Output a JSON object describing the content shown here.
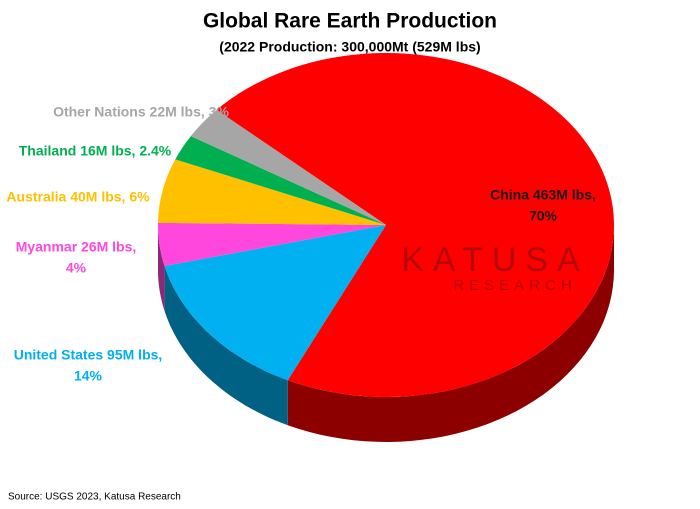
{
  "chart_data": {
    "type": "pie",
    "title": "Global Rare Earth Production",
    "subtitle": "(2022 Production: 300,000Mt (529M lbs)",
    "categories": [
      "China",
      "United States",
      "Myanmar",
      "Australia",
      "Thailand",
      "Other Nations"
    ],
    "values": [
      70,
      14,
      4,
      6,
      2.4,
      3
    ],
    "value_labels": [
      [
        "China 463M lbs,",
        "70%"
      ],
      [
        "United States 95M lbs,",
        "14%"
      ],
      [
        "Myanmar 26M lbs,",
        "4%"
      ],
      [
        "Australia 40M lbs, 6%"
      ],
      [
        "Thailand 16M lbs, 2.4%"
      ],
      [
        "Other Nations 22M lbs, 3%"
      ]
    ],
    "colors": [
      "#ff0000",
      "#00b0f0",
      "#ff47dd",
      "#ffc000",
      "#00b050",
      "#a6a6a6"
    ],
    "label_colors": [
      "#1a1a1a",
      "#00b0f0",
      "#ff47dd",
      "#ffc000",
      "#00b050",
      "#a6a6a6"
    ],
    "watermark": [
      "KATUSA",
      "RESEARCH"
    ],
    "source": "Source: USGS 2023, Katusa Research"
  }
}
